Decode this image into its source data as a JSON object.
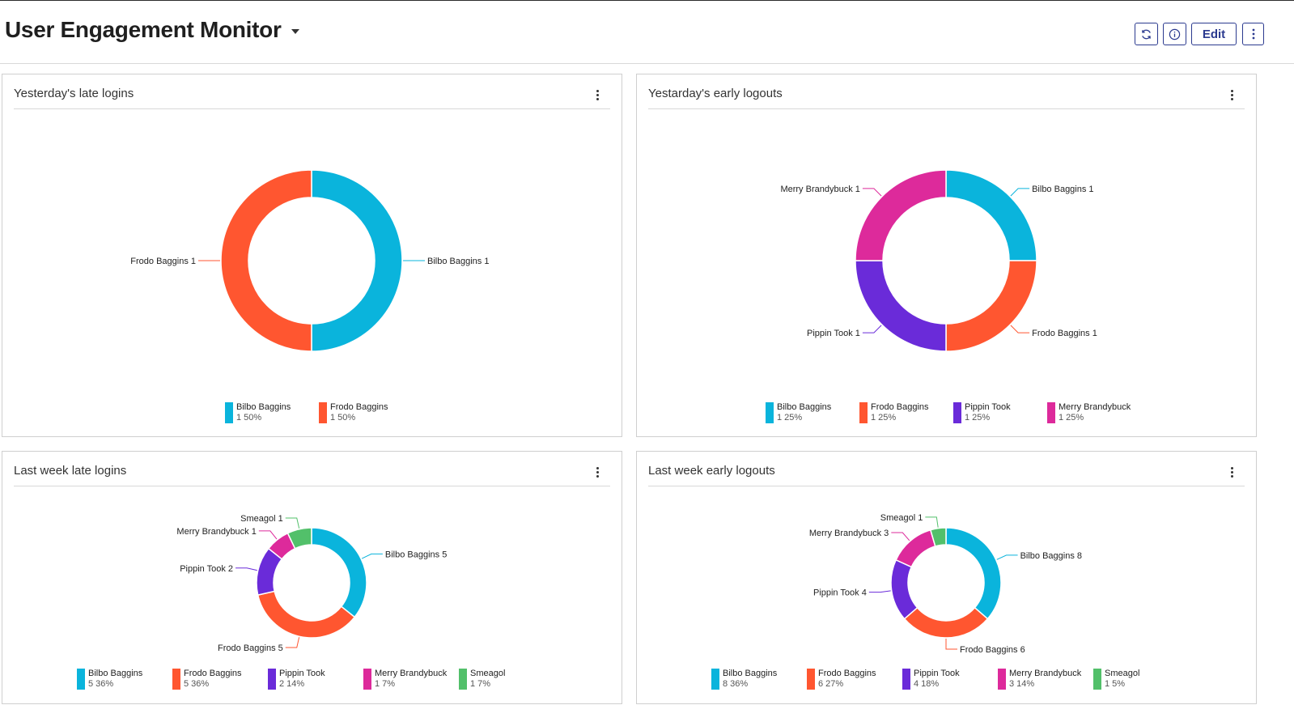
{
  "header": {
    "title": "User Engagement Monitor",
    "buttons": {
      "refresh_icon": "refresh-icon",
      "info_icon": "info-icon",
      "edit_label": "Edit",
      "more_icon": "vertical-ellipsis-icon"
    }
  },
  "colors": {
    "Bilbo Baggins": "#0ab4dc",
    "Frodo Baggins": "#ff5630",
    "Pippin Took": "#6a2bd9",
    "Merry Brandybuck": "#dd2a9b",
    "Smeagol": "#52c06a"
  },
  "panels": [
    {
      "title": "Yesterday's late logins",
      "chart_data": {
        "type": "pie",
        "title": "Yesterday's late logins",
        "series": [
          {
            "name": "Bilbo Baggins",
            "value": 1,
            "percent": "50%"
          },
          {
            "name": "Frodo Baggins",
            "value": 1,
            "percent": "50%"
          }
        ]
      }
    },
    {
      "title": "Yestarday's early logouts",
      "chart_data": {
        "type": "pie",
        "title": "Yestarday's early logouts",
        "series": [
          {
            "name": "Bilbo Baggins",
            "value": 1,
            "percent": "25%"
          },
          {
            "name": "Frodo Baggins",
            "value": 1,
            "percent": "25%"
          },
          {
            "name": "Pippin Took",
            "value": 1,
            "percent": "25%"
          },
          {
            "name": "Merry Brandybuck",
            "value": 1,
            "percent": "25%"
          }
        ]
      }
    },
    {
      "title": "Last week late logins",
      "chart_data": {
        "type": "pie",
        "title": "Last week late logins",
        "series": [
          {
            "name": "Bilbo Baggins",
            "value": 5,
            "percent": "36%"
          },
          {
            "name": "Frodo Baggins",
            "value": 5,
            "percent": "36%"
          },
          {
            "name": "Pippin Took",
            "value": 2,
            "percent": "14%"
          },
          {
            "name": "Merry Brandybuck",
            "value": 1,
            "percent": "7%"
          },
          {
            "name": "Smeagol",
            "value": 1,
            "percent": "7%"
          }
        ]
      }
    },
    {
      "title": "Last week early logouts",
      "chart_data": {
        "type": "pie",
        "title": "Last week early logouts",
        "series": [
          {
            "name": "Bilbo Baggins",
            "value": 8,
            "percent": "36%"
          },
          {
            "name": "Frodo Baggins",
            "value": 6,
            "percent": "27%"
          },
          {
            "name": "Pippin Took",
            "value": 4,
            "percent": "18%"
          },
          {
            "name": "Merry Brandybuck",
            "value": 3,
            "percent": "14%"
          },
          {
            "name": "Smeagol",
            "value": 1,
            "percent": "5%"
          }
        ]
      }
    }
  ]
}
